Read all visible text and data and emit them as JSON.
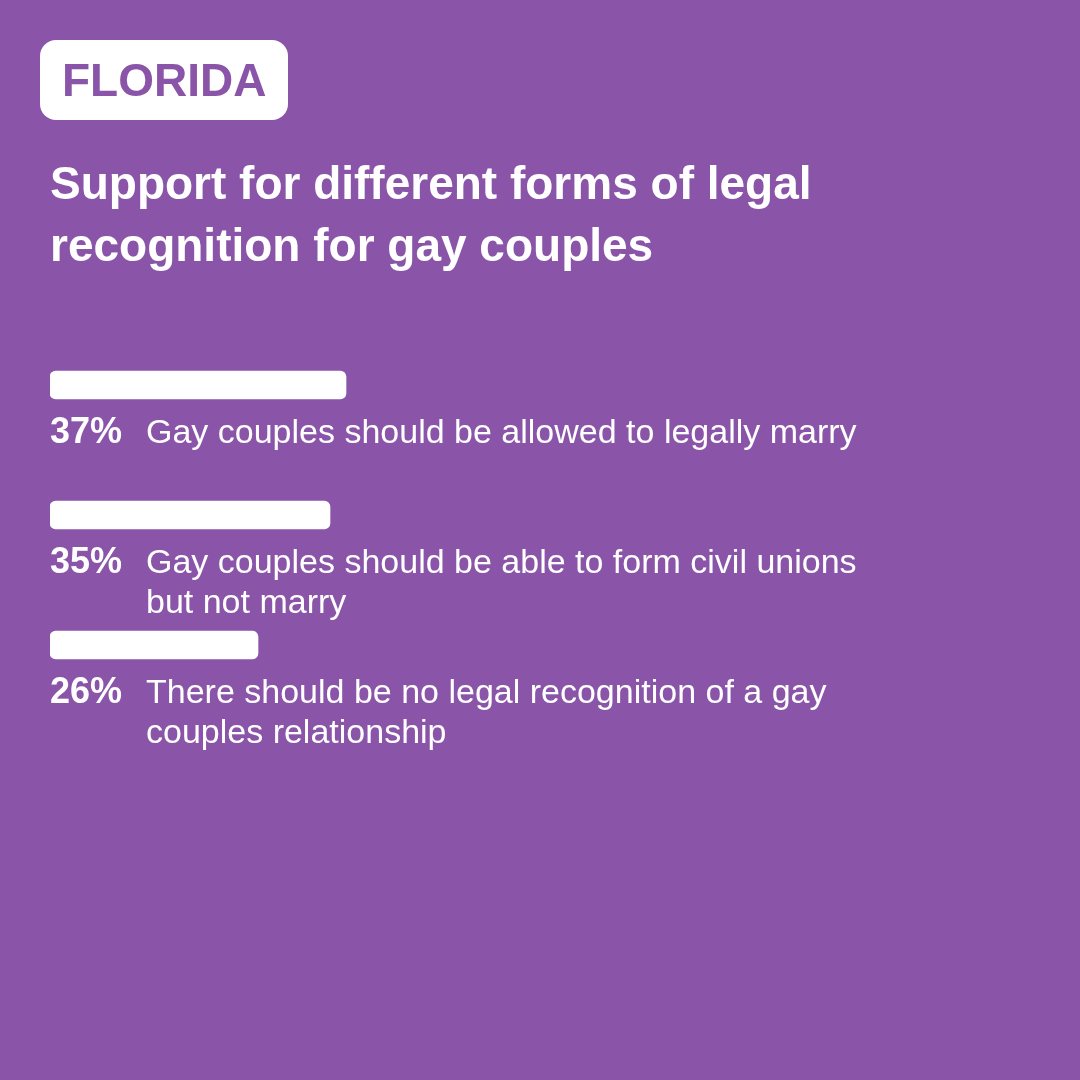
{
  "chart_data": {
    "type": "bar",
    "orientation": "horizontal",
    "title": "Support for different forms of legal recognition for gay couples",
    "annotations": [
      "FLORIDA"
    ],
    "categories": [
      "Gay couples should be allowed to legally marry",
      "Gay couples should be able to form civil unions but not marry",
      "There should be no legal recognition of a gay couples relationship"
    ],
    "values": [
      37,
      35,
      26
    ],
    "value_labels": [
      "37%",
      "35%",
      "26%"
    ],
    "color": "#ffffff"
  }
}
